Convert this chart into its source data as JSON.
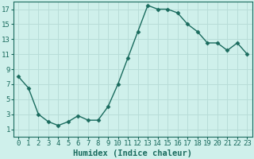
{
  "x": [
    0,
    1,
    2,
    3,
    4,
    5,
    6,
    7,
    8,
    9,
    10,
    11,
    12,
    13,
    14,
    15,
    16,
    17,
    18,
    19,
    20,
    21,
    22,
    23
  ],
  "y": [
    8,
    6.5,
    3,
    2,
    1.5,
    2,
    2.8,
    2.2,
    2.2,
    4,
    7,
    10.5,
    14,
    17.5,
    17,
    17,
    16.5,
    15,
    14,
    12.5,
    12.5,
    11.5,
    12.5,
    11
  ],
  "line_color": "#1a6b5e",
  "marker": "D",
  "marker_size": 2.5,
  "bg_color": "#cff0eb",
  "grid_color": "#b8ddd8",
  "xlabel": "Humidex (Indice chaleur)",
  "ylim": [
    0,
    18
  ],
  "xlim": [
    -0.5,
    23.5
  ],
  "yticks": [
    1,
    3,
    5,
    7,
    9,
    11,
    13,
    15,
    17
  ],
  "xtick_labels": [
    "0",
    "1",
    "2",
    "3",
    "4",
    "5",
    "6",
    "7",
    "8",
    "9",
    "10",
    "11",
    "12",
    "13",
    "14",
    "15",
    "16",
    "17",
    "18",
    "19",
    "20",
    "21",
    "22",
    "23"
  ],
  "font_color": "#1a6b5e",
  "tick_fontsize": 6.5,
  "label_fontsize": 7.5
}
